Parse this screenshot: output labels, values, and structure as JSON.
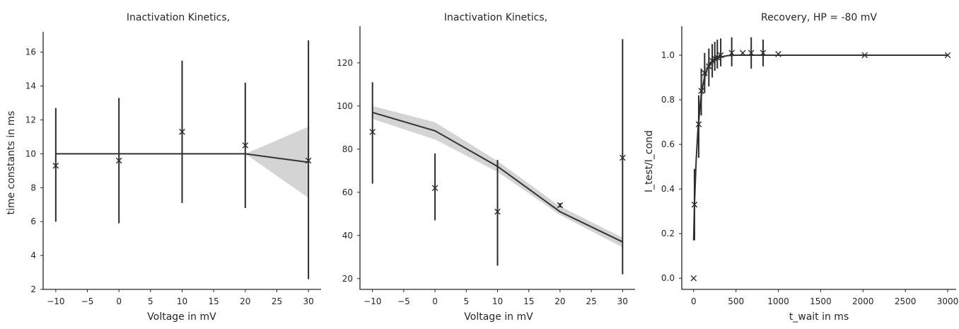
{
  "chart_data": [
    {
      "type": "line",
      "title": "Inactivation Kinetics,",
      "xlabel": "Voltage in mV",
      "ylabel": "time constants in ms",
      "xlim": [
        -12,
        32
      ],
      "ylim": [
        2,
        17.2
      ],
      "xticks": [
        -10,
        -5,
        0,
        5,
        10,
        15,
        20,
        25,
        30
      ],
      "yticks": [
        2,
        4,
        6,
        8,
        10,
        12,
        14,
        16
      ],
      "xticklabels": [
        "−10",
        "−5",
        "0",
        "5",
        "10",
        "15",
        "20",
        "25",
        "30"
      ],
      "yticklabels": [
        "2",
        "4",
        "6",
        "8",
        "10",
        "12",
        "14",
        "16"
      ],
      "points": {
        "x": [
          -10,
          0,
          10,
          20,
          30
        ],
        "y": [
          9.3,
          9.6,
          11.3,
          10.5,
          9.6
        ],
        "err_low": [
          6.0,
          5.9,
          7.1,
          6.8,
          2.6
        ],
        "err_high": [
          12.7,
          13.3,
          15.5,
          14.2,
          16.7
        ]
      },
      "fit": {
        "x": [
          -10,
          20,
          30
        ],
        "y": [
          10.0,
          10.0,
          9.5
        ]
      },
      "band": {
        "x": [
          -10,
          20,
          30
        ],
        "low": [
          10.0,
          10.0,
          7.4
        ],
        "high": [
          10.0,
          10.0,
          11.6
        ]
      }
    },
    {
      "type": "line",
      "title": "Inactivation Kinetics,",
      "xlabel": "Voltage in mV",
      "ylabel": "",
      "xlim": [
        -12,
        32
      ],
      "ylim": [
        15,
        137
      ],
      "xticks": [
        -10,
        -5,
        0,
        5,
        10,
        15,
        20,
        25,
        30
      ],
      "yticks": [
        20,
        40,
        60,
        80,
        100,
        120
      ],
      "xticklabels": [
        "−10",
        "−5",
        "0",
        "5",
        "10",
        "15",
        "20",
        "25",
        "30"
      ],
      "yticklabels": [
        "20",
        "40",
        "60",
        "80",
        "100",
        "120"
      ],
      "points": {
        "x": [
          -10,
          0,
          10,
          20,
          30
        ],
        "y": [
          88,
          62,
          51,
          54,
          76
        ],
        "err_low": [
          64,
          47,
          26,
          53,
          22
        ],
        "err_high": [
          111,
          78,
          75,
          55,
          131
        ]
      },
      "fit": {
        "x": [
          -10,
          0,
          10,
          20,
          30
        ],
        "y": [
          97,
          88.5,
          72,
          51,
          37
        ]
      },
      "band": {
        "x": [
          -10,
          0,
          10,
          20,
          30
        ],
        "low": [
          94,
          84.5,
          69.5,
          49.5,
          34.5
        ],
        "high": [
          100,
          92.5,
          74.5,
          53.5,
          39
        ]
      }
    },
    {
      "type": "line",
      "title": "Recovery, HP = -80 mV",
      "xlabel": "t_wait in ms",
      "ylabel": "I_test/I_cond",
      "xlim": [
        -140,
        3100
      ],
      "ylim": [
        -0.05,
        1.13
      ],
      "xticks": [
        0,
        500,
        1000,
        1500,
        2000,
        2500,
        3000
      ],
      "yticks": [
        0.0,
        0.2,
        0.4,
        0.6,
        0.8,
        1.0
      ],
      "xticklabels": [
        "0",
        "500",
        "1000",
        "1500",
        "2000",
        "2500",
        "3000"
      ],
      "yticklabels": [
        "0.0",
        "0.2",
        "0.4",
        "0.6",
        "0.8",
        "1.0"
      ],
      "points": {
        "x": [
          0,
          10,
          60,
          90,
          130,
          180,
          220,
          250,
          280,
          320,
          450,
          580,
          680,
          820,
          1000,
          2020,
          3000
        ],
        "y": [
          0.0,
          0.33,
          0.69,
          0.84,
          0.92,
          0.95,
          0.975,
          0.985,
          0.99,
          1.0,
          1.01,
          1.01,
          1.01,
          1.01,
          1.005,
          1.0,
          1.0
        ],
        "err_low": [
          null,
          0.17,
          0.54,
          0.73,
          0.83,
          0.86,
          0.9,
          0.93,
          0.94,
          0.95,
          0.95,
          null,
          0.94,
          0.95,
          null,
          null,
          null
        ],
        "err_high": [
          null,
          0.49,
          0.82,
          0.94,
          1.01,
          1.03,
          1.05,
          1.06,
          1.07,
          1.075,
          1.08,
          null,
          1.08,
          1.07,
          null,
          null,
          null
        ]
      },
      "fit": {
        "x": [
          0,
          10,
          30,
          50,
          75,
          100,
          130,
          160,
          200,
          250,
          300,
          400,
          500,
          700,
          1000,
          2000,
          3000
        ],
        "y": [
          0.17,
          0.33,
          0.53,
          0.66,
          0.77,
          0.85,
          0.9,
          0.94,
          0.965,
          0.98,
          0.99,
          0.998,
          1.0,
          1.0,
          1.0,
          1.0,
          1.0
        ]
      },
      "band": {
        "x": [
          0,
          10,
          30,
          50,
          75,
          100,
          130,
          160,
          200,
          250,
          300,
          400,
          500
        ],
        "low": [
          0.11,
          0.27,
          0.47,
          0.6,
          0.72,
          0.8,
          0.86,
          0.91,
          0.94,
          0.965,
          0.98,
          0.995,
          1.0
        ],
        "high": [
          0.23,
          0.39,
          0.59,
          0.72,
          0.82,
          0.9,
          0.94,
          0.97,
          0.985,
          0.99,
          0.995,
          1.0,
          1.0
        ]
      }
    }
  ]
}
